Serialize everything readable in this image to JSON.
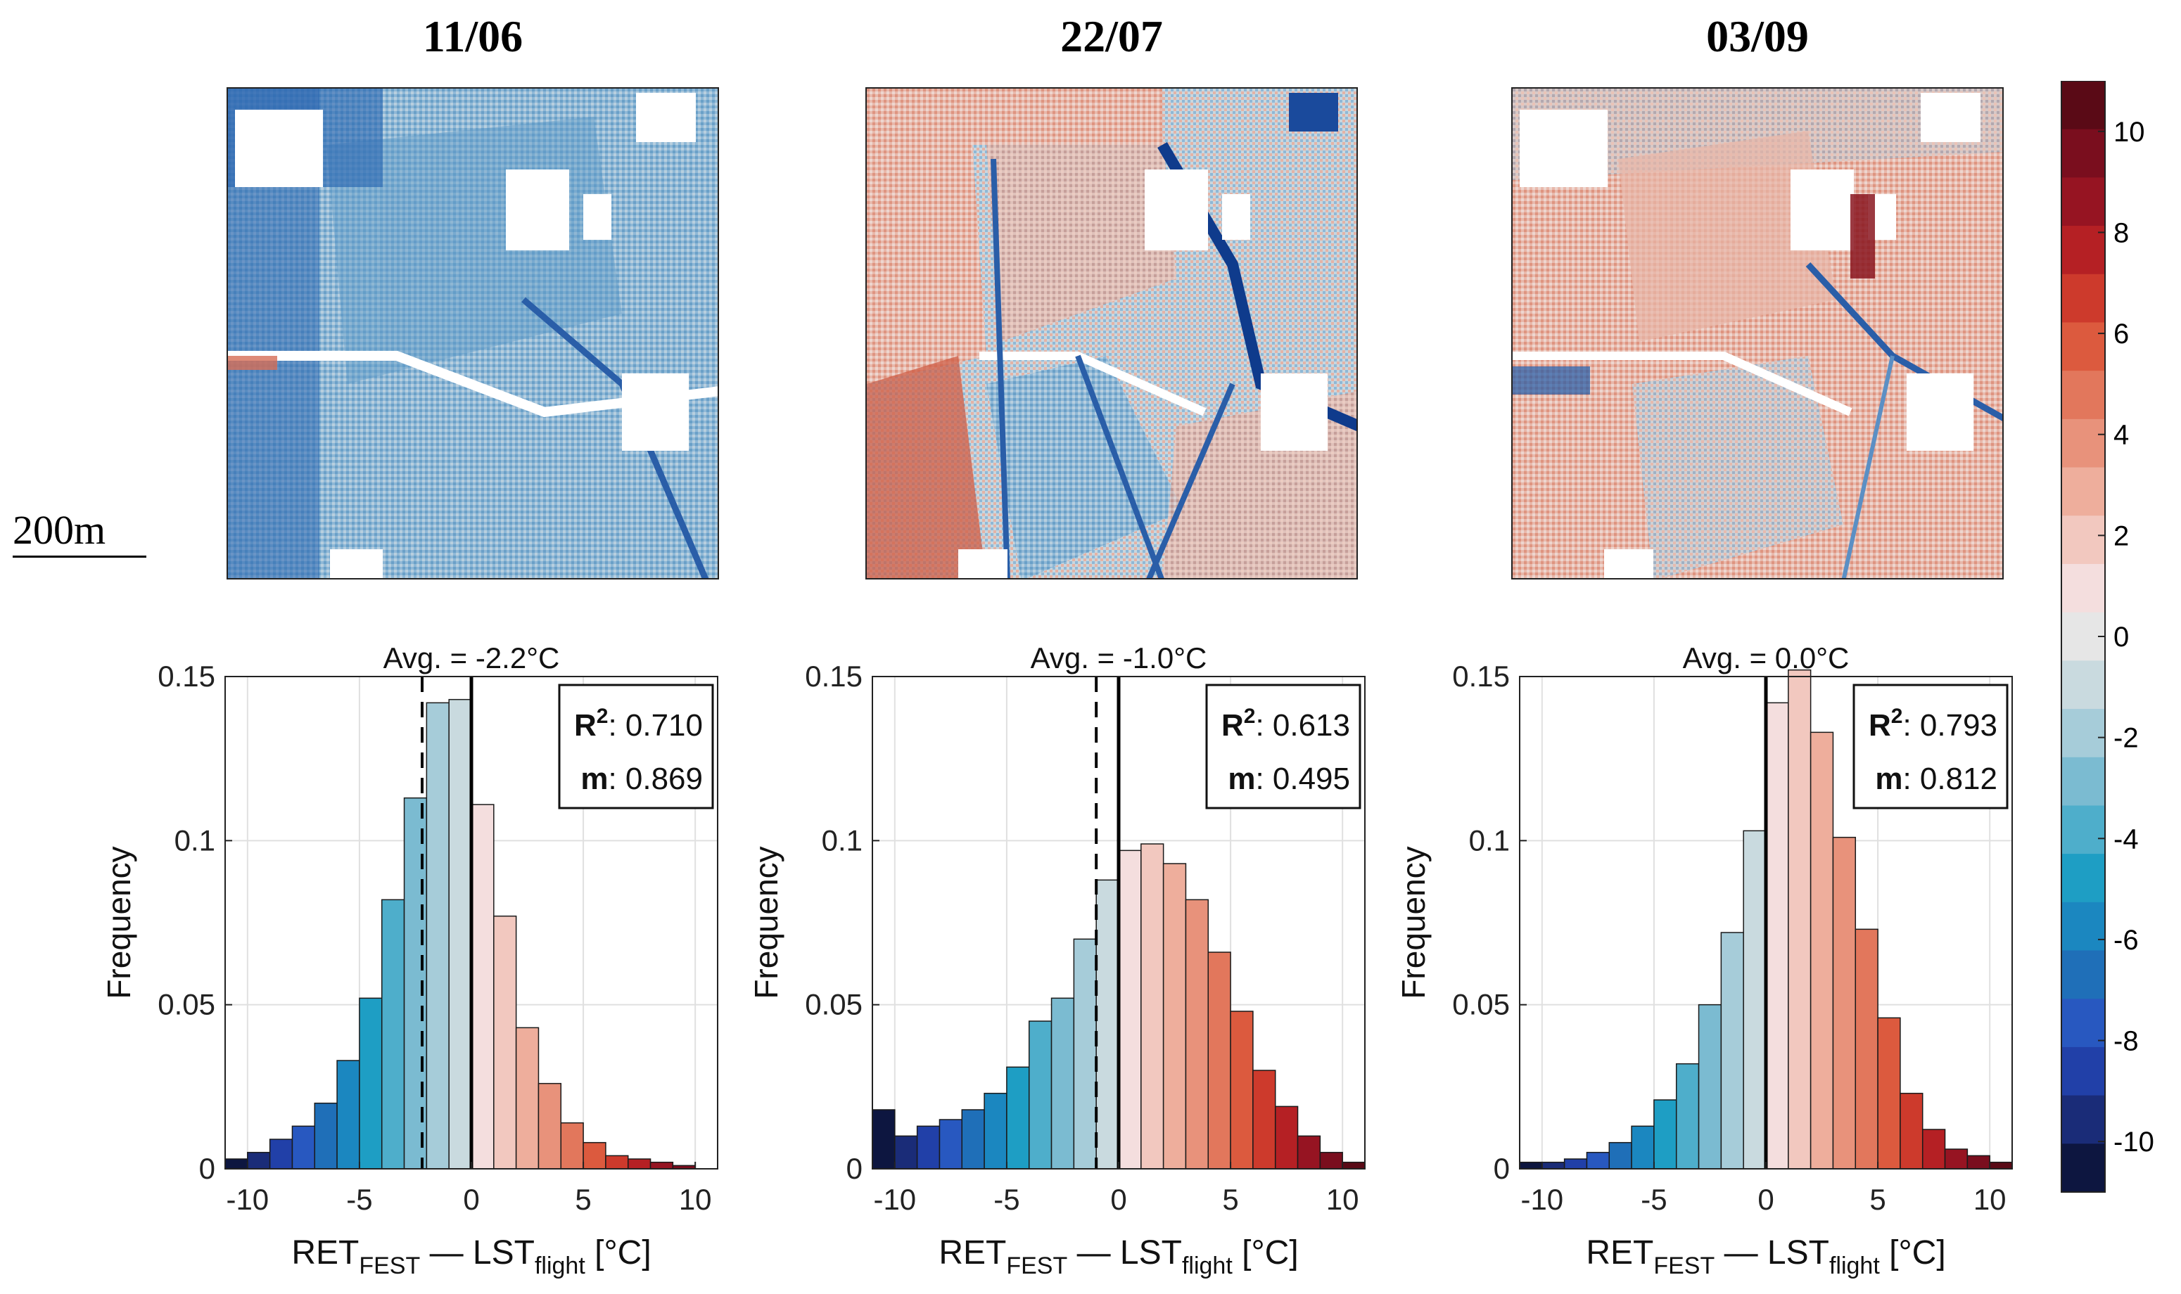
{
  "scale_bar": {
    "label": "200m"
  },
  "colorbar": {
    "ticks": [
      "10",
      "8",
      "6",
      "4",
      "2",
      "0",
      "-2",
      "-4",
      "-6",
      "-8",
      "-10"
    ],
    "colors": [
      "#0d1640",
      "#1a2c78",
      "#2140a8",
      "#2858c0",
      "#1f6fb8",
      "#1b87c0",
      "#1e9ec4",
      "#4eaecb",
      "#7bbbd1",
      "#a6ccd9",
      "#c9dadf",
      "#e6e6e6",
      "#f4dede",
      "#f2c8bf",
      "#eeae9c",
      "#e8927b",
      "#e2775c",
      "#dc5a3e",
      "#cd3a2c",
      "#b52024",
      "#961422",
      "#7a0e1e",
      "#5a0a16"
    ]
  },
  "panels": [
    {
      "date": "11/06",
      "avg": "Avg. = -2.2°C",
      "avg_value": -2.2,
      "r2_label": "R",
      "r2_sup": "2",
      "r2_value": ": 0.710",
      "m_label": "m",
      "m_value": ": 0.869",
      "map_tint": "blue"
    },
    {
      "date": "22/07",
      "avg": "Avg. = -1.0°C",
      "avg_value": -1.0,
      "r2_label": "R",
      "r2_sup": "2",
      "r2_value": ": 0.613",
      "m_label": "m",
      "m_value": ": 0.495",
      "map_tint": "mixed"
    },
    {
      "date": "03/09",
      "avg": "Avg. = 0.0°C",
      "avg_value": 0.0,
      "r2_label": "R",
      "r2_sup": "2",
      "r2_value": ": 0.793",
      "m_label": "m",
      "m_value": ": 0.812",
      "map_tint": "red"
    }
  ],
  "chart_data": [
    {
      "type": "bar",
      "title": "Avg. = -2.2°C",
      "ylabel": "Frequency",
      "xlabel": {
        "main": "RET",
        "sub1": "FEST",
        "mid": " — LST",
        "sub2": "flight",
        "unit": " [°C]"
      },
      "xlim": [
        -11,
        11
      ],
      "ylim": [
        0,
        0.15
      ],
      "xticks": [
        "-10",
        "-5",
        "0",
        "5",
        "10"
      ],
      "yticks": [
        "0",
        "0.05",
        "0.1",
        "0.15"
      ],
      "bin_centers": [
        -10.5,
        -9.5,
        -8.5,
        -7.5,
        -6.5,
        -5.5,
        -4.5,
        -3.5,
        -2.5,
        -1.5,
        -0.5,
        0.5,
        1.5,
        2.5,
        3.5,
        4.5,
        5.5,
        6.5,
        7.5,
        8.5,
        9.5,
        10.5
      ],
      "values": [
        0.003,
        0.005,
        0.009,
        0.013,
        0.02,
        0.033,
        0.052,
        0.082,
        0.113,
        0.142,
        0.143,
        0.111,
        0.077,
        0.043,
        0.026,
        0.014,
        0.008,
        0.004,
        0.003,
        0.002,
        0.001,
        0
      ],
      "avg_line": -2.2
    },
    {
      "type": "bar",
      "title": "Avg. = -1.0°C",
      "ylabel": "Frequency",
      "xlabel": {
        "main": "RET",
        "sub1": "FEST",
        "mid": " — LST",
        "sub2": "flight",
        "unit": " [°C]"
      },
      "xlim": [
        -11,
        11
      ],
      "ylim": [
        0,
        0.15
      ],
      "xticks": [
        "-10",
        "-5",
        "0",
        "5",
        "10"
      ],
      "yticks": [
        "0",
        "0.05",
        "0.1",
        "0.15"
      ],
      "bin_centers": [
        -10.5,
        -9.5,
        -8.5,
        -7.5,
        -6.5,
        -5.5,
        -4.5,
        -3.5,
        -2.5,
        -1.5,
        -0.5,
        0.5,
        1.5,
        2.5,
        3.5,
        4.5,
        5.5,
        6.5,
        7.5,
        8.5,
        9.5,
        10.5
      ],
      "values": [
        0.018,
        0.01,
        0.013,
        0.015,
        0.018,
        0.023,
        0.031,
        0.045,
        0.052,
        0.07,
        0.088,
        0.097,
        0.099,
        0.093,
        0.082,
        0.066,
        0.048,
        0.03,
        0.019,
        0.01,
        0.005,
        0.002
      ],
      "avg_line": -1.0
    },
    {
      "type": "bar",
      "title": "Avg. = 0.0°C",
      "ylabel": "Frequency",
      "xlabel": {
        "main": "RET",
        "sub1": "FEST",
        "mid": " — LST",
        "sub2": "flight",
        "unit": " [°C]"
      },
      "xlim": [
        -11,
        11
      ],
      "ylim": [
        0,
        0.15
      ],
      "xticks": [
        "-10",
        "-5",
        "0",
        "5",
        "10"
      ],
      "yticks": [
        "0",
        "0.05",
        "0.1",
        "0.15"
      ],
      "bin_centers": [
        -10.5,
        -9.5,
        -8.5,
        -7.5,
        -6.5,
        -5.5,
        -4.5,
        -3.5,
        -2.5,
        -1.5,
        -0.5,
        0.5,
        1.5,
        2.5,
        3.5,
        4.5,
        5.5,
        6.5,
        7.5,
        8.5,
        9.5,
        10.5
      ],
      "values": [
        0.002,
        0.002,
        0.003,
        0.005,
        0.008,
        0.013,
        0.021,
        0.032,
        0.05,
        0.072,
        0.103,
        0.142,
        0.152,
        0.133,
        0.101,
        0.073,
        0.046,
        0.023,
        0.012,
        0.006,
        0.004,
        0.002
      ],
      "avg_line": 0.0
    }
  ]
}
